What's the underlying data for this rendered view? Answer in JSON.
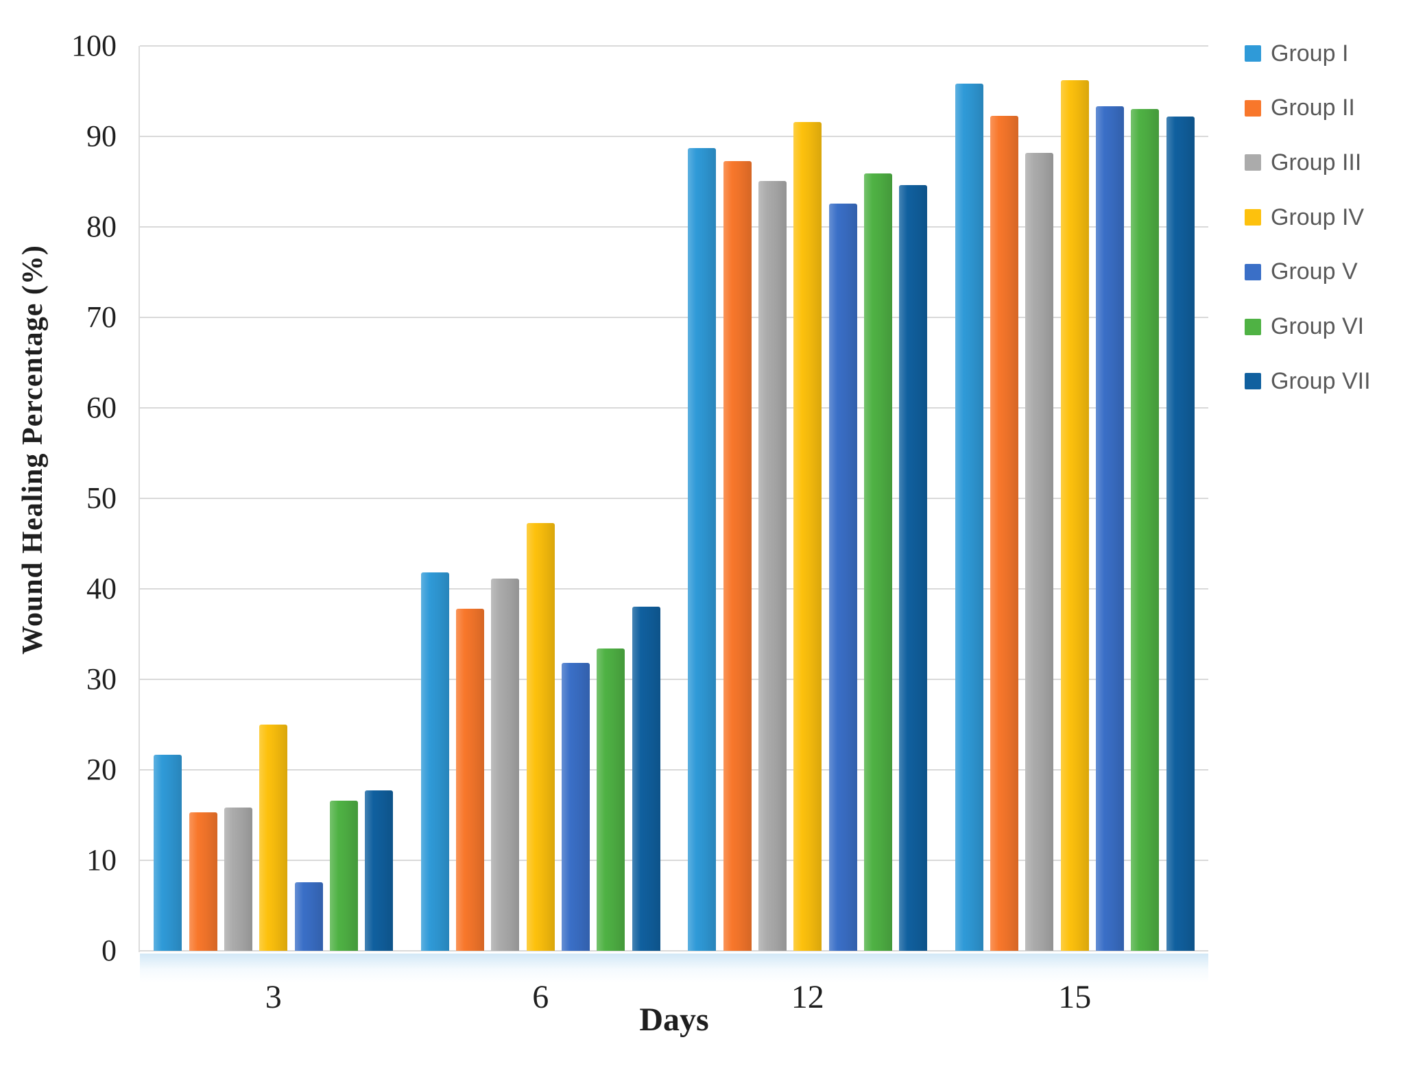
{
  "chart_data": {
    "type": "bar",
    "title": "",
    "xlabel": "Days",
    "ylabel": "Wound Healing Percentage (%)",
    "categories": [
      "3",
      "6",
      "12",
      "15"
    ],
    "series": [
      {
        "name": "Group I",
        "color": "#2F9AD8",
        "values": [
          21.7,
          41.8,
          88.7,
          95.8
        ]
      },
      {
        "name": "Group II",
        "color": "#F8772B",
        "values": [
          15.3,
          37.8,
          87.3,
          92.3
        ]
      },
      {
        "name": "Group III",
        "color": "#ABABAB",
        "values": [
          15.8,
          41.1,
          85.1,
          88.2
        ]
      },
      {
        "name": "Group IV",
        "color": "#FDC10D",
        "values": [
          25.0,
          47.3,
          91.6,
          96.2
        ]
      },
      {
        "name": "Group V",
        "color": "#3A6FC7",
        "values": [
          7.6,
          31.8,
          82.6,
          93.3
        ]
      },
      {
        "name": "Group VI",
        "color": "#4FB244",
        "values": [
          16.6,
          33.4,
          85.9,
          93.0
        ]
      },
      {
        "name": "Group VII",
        "color": "#10609F",
        "values": [
          17.7,
          38.0,
          84.6,
          92.2
        ]
      }
    ],
    "ylim": [
      0,
      100
    ],
    "yticks": [
      0,
      10,
      20,
      30,
      40,
      50,
      60,
      70,
      80,
      90,
      100
    ],
    "grid": true,
    "legend_position": "right",
    "gridline_color": "#D9D9D9",
    "axis_text_color": "#1E1E1E",
    "legend_text_color": "#595959"
  }
}
